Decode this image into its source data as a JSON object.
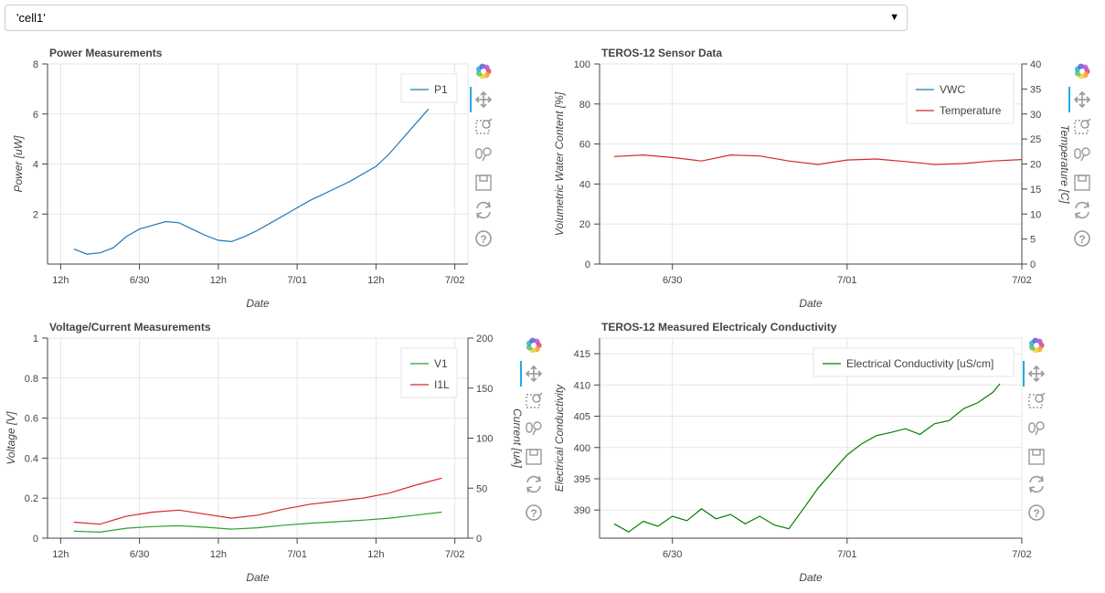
{
  "selector": {
    "value": "'cell1'"
  },
  "toolbar": {
    "icons": [
      "bokeh-logo-icon",
      "pan-icon",
      "box-zoom-icon",
      "wheel-zoom-icon",
      "save-icon",
      "reset-icon",
      "help-icon"
    ]
  },
  "chart_data": [
    {
      "type": "line",
      "title": "Power Measurements",
      "xlabel": "Date",
      "ylabel": "Power [uW]",
      "xlim": [
        "2023-06-29T10:00",
        "2023-07-02T02:00"
      ],
      "ylim": [
        0,
        8
      ],
      "x_ticks": [
        "12h",
        "6/30",
        "12h",
        "7/01",
        "12h",
        "7/02"
      ],
      "y_ticks": [
        "2",
        "4",
        "6",
        "8"
      ],
      "legend_position": "top-right",
      "series": [
        {
          "name": "P1",
          "color": "#1f77b4",
          "x": [
            "2023-06-29T14:00",
            "2023-06-29T16:00",
            "2023-06-29T18:00",
            "2023-06-29T20:00",
            "2023-06-29T22:00",
            "2023-06-30T00:00",
            "2023-06-30T02:00",
            "2023-06-30T04:00",
            "2023-06-30T06:00",
            "2023-06-30T08:00",
            "2023-06-30T10:00",
            "2023-06-30T12:00",
            "2023-06-30T14:00",
            "2023-06-30T16:00",
            "2023-06-30T18:00",
            "2023-06-30T20:00",
            "2023-06-30T22:00",
            "2023-07-01T00:00",
            "2023-07-01T02:00",
            "2023-07-01T04:00",
            "2023-07-01T06:00",
            "2023-07-01T08:00",
            "2023-07-01T10:00",
            "2023-07-01T12:00",
            "2023-07-01T14:00",
            "2023-07-01T16:00",
            "2023-07-01T18:00",
            "2023-07-01T20:00"
          ],
          "y": [
            0.6,
            0.4,
            0.45,
            0.65,
            1.1,
            1.4,
            1.55,
            1.7,
            1.65,
            1.4,
            1.15,
            0.95,
            0.9,
            1.1,
            1.35,
            1.65,
            1.95,
            2.25,
            2.55,
            2.8,
            3.05,
            3.3,
            3.6,
            3.9,
            4.4,
            5.0,
            5.6,
            6.2
          ]
        }
      ]
    },
    {
      "type": "line",
      "title": "TEROS-12 Sensor Data",
      "xlabel": "Date",
      "ylabel": "Volumetric Water Content [%]",
      "ylabel_right": "Temperature [C]",
      "xlim": [
        "2023-06-29T14:00",
        "2023-07-02T00:00"
      ],
      "ylim": [
        0,
        100
      ],
      "ylim_right": [
        0,
        40
      ],
      "x_ticks": [
        "6/30",
        "7/01",
        "7/02"
      ],
      "y_ticks": [
        "0",
        "20",
        "40",
        "60",
        "80",
        "100"
      ],
      "y_ticks_right": [
        "0",
        "5",
        "10",
        "15",
        "20",
        "25",
        "30",
        "35",
        "40"
      ],
      "legend_position": "top-right",
      "series": [
        {
          "name": "VWC",
          "color": "#1f77b4",
          "x": [],
          "y": []
        },
        {
          "name": "Temperature",
          "color": "#d62728",
          "axis": "right",
          "x": [
            "2023-06-29T16:00",
            "2023-06-29T20:00",
            "2023-06-30T00:00",
            "2023-06-30T04:00",
            "2023-06-30T08:00",
            "2023-06-30T12:00",
            "2023-06-30T16:00",
            "2023-06-30T20:00",
            "2023-07-01T00:00",
            "2023-07-01T04:00",
            "2023-07-01T08:00",
            "2023-07-01T12:00",
            "2023-07-01T16:00",
            "2023-07-01T20:00",
            "2023-07-02T00:00"
          ],
          "y": [
            21.5,
            21.8,
            21.3,
            20.6,
            21.8,
            21.6,
            20.6,
            19.9,
            20.8,
            21.0,
            20.5,
            19.9,
            20.1,
            20.6,
            20.9
          ]
        }
      ]
    },
    {
      "type": "line",
      "title": "Voltage/Current Measurements",
      "xlabel": "Date",
      "ylabel": "Voltage [V]",
      "ylabel_right": "Current [uA]",
      "xlim": [
        "2023-06-29T10:00",
        "2023-07-02T02:00"
      ],
      "ylim": [
        0,
        1
      ],
      "ylim_right": [
        0,
        200
      ],
      "x_ticks": [
        "12h",
        "6/30",
        "12h",
        "7/01",
        "12h",
        "7/02"
      ],
      "y_ticks": [
        "0",
        "0.2",
        "0.4",
        "0.6",
        "0.8",
        "1"
      ],
      "y_ticks_right": [
        "0",
        "50",
        "100",
        "150",
        "200"
      ],
      "legend_position": "top-right",
      "series": [
        {
          "name": "V1",
          "color": "#2ca02c",
          "x": [
            "2023-06-29T14:00",
            "2023-06-29T18:00",
            "2023-06-29T22:00",
            "2023-06-30T02:00",
            "2023-06-30T06:00",
            "2023-06-30T10:00",
            "2023-06-30T14:00",
            "2023-06-30T18:00",
            "2023-06-30T22:00",
            "2023-07-01T02:00",
            "2023-07-01T06:00",
            "2023-07-01T10:00",
            "2023-07-01T14:00",
            "2023-07-01T18:00",
            "2023-07-01T22:00"
          ],
          "y": [
            0.035,
            0.03,
            0.05,
            0.058,
            0.062,
            0.055,
            0.045,
            0.052,
            0.065,
            0.075,
            0.082,
            0.09,
            0.1,
            0.115,
            0.13
          ]
        },
        {
          "name": "I1L",
          "color": "#d62728",
          "axis": "right",
          "x": [
            "2023-06-29T14:00",
            "2023-06-29T18:00",
            "2023-06-29T22:00",
            "2023-06-30T02:00",
            "2023-06-30T06:00",
            "2023-06-30T10:00",
            "2023-06-30T14:00",
            "2023-06-30T18:00",
            "2023-06-30T22:00",
            "2023-07-01T02:00",
            "2023-07-01T06:00",
            "2023-07-01T10:00",
            "2023-07-01T14:00",
            "2023-07-01T18:00",
            "2023-07-01T22:00"
          ],
          "y": [
            16,
            14,
            22,
            26,
            28,
            24,
            20,
            23,
            29,
            34,
            37,
            40,
            45,
            53,
            60
          ]
        }
      ]
    },
    {
      "type": "line",
      "title": "TEROS-12 Measured Electricaly Conductivity",
      "xlabel": "Date",
      "ylabel": "Electrical Conductivity",
      "xlim": [
        "2023-06-29T14:00",
        "2023-07-02T00:00"
      ],
      "ylim": [
        385.5,
        417.5
      ],
      "x_ticks": [
        "6/30",
        "7/01",
        "7/02"
      ],
      "y_ticks": [
        "390",
        "395",
        "400",
        "405",
        "410",
        "415"
      ],
      "legend_position": "top-right",
      "series": [
        {
          "name": "Electrical Conductivity [uS/cm]",
          "color": "#008000",
          "x": [
            "2023-06-29T16:00",
            "2023-06-29T18:00",
            "2023-06-29T20:00",
            "2023-06-29T22:00",
            "2023-06-30T00:00",
            "2023-06-30T02:00",
            "2023-06-30T04:00",
            "2023-06-30T06:00",
            "2023-06-30T08:00",
            "2023-06-30T10:00",
            "2023-06-30T12:00",
            "2023-06-30T14:00",
            "2023-06-30T16:00",
            "2023-06-30T18:00",
            "2023-06-30T20:00",
            "2023-06-30T22:00",
            "2023-07-01T00:00",
            "2023-07-01T02:00",
            "2023-07-01T04:00",
            "2023-07-01T06:00",
            "2023-07-01T08:00",
            "2023-07-01T10:00",
            "2023-07-01T12:00",
            "2023-07-01T14:00",
            "2023-07-01T16:00",
            "2023-07-01T18:00",
            "2023-07-01T20:00",
            "2023-07-01T21:00"
          ],
          "y": [
            387.8,
            386.5,
            388.2,
            387.4,
            389.0,
            388.3,
            390.2,
            388.6,
            389.3,
            387.8,
            389.0,
            387.6,
            387.0,
            390.2,
            393.5,
            396.2,
            398.8,
            400.6,
            401.9,
            402.4,
            403.0,
            402.1,
            403.8,
            404.3,
            406.2,
            407.2,
            408.8,
            410.2
          ]
        }
      ]
    }
  ]
}
